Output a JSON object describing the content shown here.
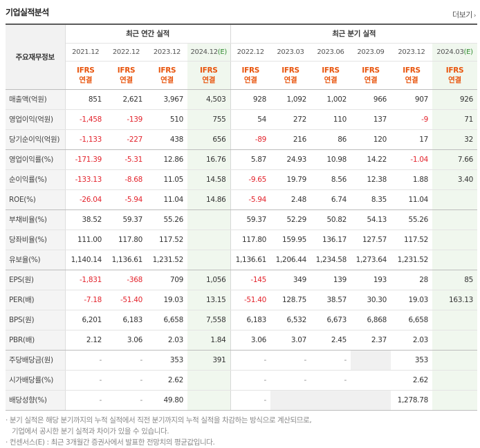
{
  "title": "기업실적분석",
  "more_label": "더보기",
  "header": {
    "row_caption": "주요재무정보",
    "annual_group": "최근 연간 실적",
    "quarter_group": "최근 분기 실적",
    "annual_periods": [
      {
        "label": "2021.12",
        "estimate": false
      },
      {
        "label": "2022.12",
        "estimate": false
      },
      {
        "label": "2023.12",
        "estimate": false
      },
      {
        "label": "2024.12",
        "estimate": true
      }
    ],
    "quarter_periods": [
      {
        "label": "2022.12",
        "estimate": false
      },
      {
        "label": "2023.03",
        "estimate": false
      },
      {
        "label": "2023.06",
        "estimate": false
      },
      {
        "label": "2023.09",
        "estimate": false
      },
      {
        "label": "2023.12",
        "estimate": false
      },
      {
        "label": "2024.03",
        "estimate": true
      }
    ],
    "estimate_mark": "(E)",
    "ifrs_line1": "IFRS",
    "ifrs_line2": "연결"
  },
  "rows": [
    {
      "label": "매출액(억원)",
      "values": [
        "851",
        "2,621",
        "3,967",
        "4,503",
        "928",
        "1,092",
        "1,002",
        "966",
        "907",
        "926"
      ],
      "group_end": false
    },
    {
      "label": "영업이익(억원)",
      "values": [
        "-1,458",
        "-139",
        "510",
        "755",
        "54",
        "272",
        "110",
        "137",
        "-9",
        "71"
      ],
      "group_end": false
    },
    {
      "label": "당기순이익(억원)",
      "values": [
        "-1,133",
        "-227",
        "438",
        "656",
        "-89",
        "216",
        "86",
        "120",
        "17",
        "32"
      ],
      "group_end": true
    },
    {
      "label": "영업이익률(%)",
      "values": [
        "-171.39",
        "-5.31",
        "12.86",
        "16.76",
        "5.87",
        "24.93",
        "10.98",
        "14.22",
        "-1.04",
        "7.66"
      ],
      "group_end": false
    },
    {
      "label": "순이익률(%)",
      "values": [
        "-133.13",
        "-8.68",
        "11.05",
        "14.58",
        "-9.65",
        "19.79",
        "8.56",
        "12.38",
        "1.88",
        "3.40"
      ],
      "group_end": false
    },
    {
      "label": "ROE(%)",
      "values": [
        "-26.04",
        "-5.94",
        "11.04",
        "14.86",
        "-5.94",
        "2.48",
        "6.74",
        "8.35",
        "11.04",
        ""
      ],
      "group_end": true
    },
    {
      "label": "부채비율(%)",
      "values": [
        "38.52",
        "59.37",
        "55.26",
        "",
        "59.37",
        "52.29",
        "50.82",
        "54.13",
        "55.26",
        ""
      ],
      "group_end": false
    },
    {
      "label": "당좌비율(%)",
      "values": [
        "111.00",
        "117.80",
        "117.52",
        "",
        "117.80",
        "159.95",
        "136.17",
        "127.57",
        "117.52",
        ""
      ],
      "group_end": false
    },
    {
      "label": "유보율(%)",
      "values": [
        "1,140.14",
        "1,136.61",
        "1,231.52",
        "",
        "1,136.61",
        "1,206.44",
        "1,234.58",
        "1,273.64",
        "1,231.52",
        ""
      ],
      "group_end": true
    },
    {
      "label": "EPS(원)",
      "values": [
        "-1,831",
        "-368",
        "709",
        "1,056",
        "-145",
        "349",
        "139",
        "193",
        "28",
        "85"
      ],
      "group_end": false
    },
    {
      "label": "PER(배)",
      "values": [
        "-7.18",
        "-51.40",
        "19.03",
        "13.15",
        "-51.40",
        "128.75",
        "38.57",
        "30.30",
        "19.03",
        "163.13"
      ],
      "group_end": false
    },
    {
      "label": "BPS(원)",
      "values": [
        "6,201",
        "6,183",
        "6,658",
        "7,558",
        "6,183",
        "6,532",
        "6,673",
        "6,868",
        "6,658",
        ""
      ],
      "group_end": false
    },
    {
      "label": "PBR(배)",
      "values": [
        "2.12",
        "3.06",
        "2.03",
        "1.84",
        "3.06",
        "3.07",
        "2.45",
        "2.37",
        "2.03",
        ""
      ],
      "group_end": true
    },
    {
      "label": "주당배당금(원)",
      "values": [
        "-",
        "-",
        "353",
        "391",
        "-",
        "-",
        "-",
        "",
        "353",
        ""
      ],
      "group_end": false,
      "grey_cells": [
        7
      ]
    },
    {
      "label": "시가배당률(%)",
      "values": [
        "-",
        "-",
        "2.62",
        "",
        "-",
        "-",
        "-",
        "",
        "2.62",
        ""
      ],
      "group_end": false
    },
    {
      "label": "배당성향(%)",
      "values": [
        "-",
        "-",
        "49.80",
        "",
        "-",
        "",
        "",
        "",
        "1,278.78",
        ""
      ],
      "group_end": true,
      "grey_cells": [
        5,
        6,
        7
      ]
    }
  ],
  "notes": [
    "분기 실적은 해당 분기까지의 누적 실적에서 직전 분기까지의 누적 실적을 차감하는 방식으로 계산되므로,",
    "기업에서 공시한 분기 실적과 차이가 있을 수 있습니다.",
    "컨센서스(E) : 최근 3개월간 증권사에서 발표한 전망치의 평균값입니다."
  ],
  "colors": {
    "negative": "#e3232c",
    "ifrs": "#e8540c",
    "estimate_bg": "#f0f7ee"
  }
}
